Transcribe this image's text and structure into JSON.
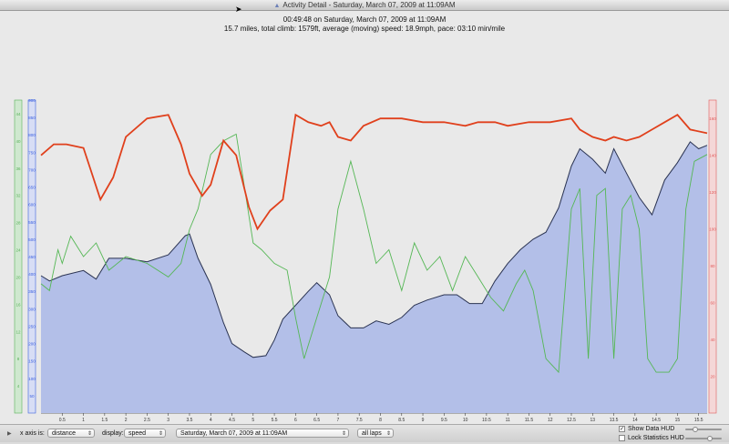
{
  "window": {
    "title": "Activity Detail - Saturday, March 07, 2009 at 11:09AM"
  },
  "header": {
    "line1": "00:49:48 on Saturday, March 07, 2009 at 11:09AM",
    "line2": "15.7 miles, total climb: 1579ft, average (moving) speed: 18.9mph, pace: 03:10 min/mile"
  },
  "controls": {
    "x_axis_label": "x axis is:",
    "x_axis_value": "distance",
    "display_label": "display:",
    "display_value": "speed",
    "activity_value": "Saturday, March 07, 2009 at 11:09AM",
    "laps_value": "all laps",
    "show_hud_label": "Show Data HUD",
    "show_hud_checked": true,
    "lock_stats_label": "Lock Statistics HUD",
    "lock_stats_checked": false
  },
  "colors": {
    "elevation_fill": "#b3bfe8",
    "elevation_line": "#2a3352",
    "heart_rate": "#e0401c",
    "speed": "#55b755",
    "axis_green": "#58b158",
    "axis_blue": "#3d62e0",
    "axis_red": "#e05a5a"
  },
  "chart_data": {
    "type": "area",
    "xlabel": "",
    "x_ticks": [
      "0.5",
      "1",
      "1.5",
      "2",
      "2.5",
      "3",
      "3.5",
      "4",
      "4.5",
      "5",
      "5.5",
      "6",
      "6.5",
      "7",
      "7.5",
      "8",
      "8.5",
      "9",
      "9.5",
      "10",
      "10.5",
      "11",
      "11.5",
      "12",
      "12.5",
      "13",
      "13.5",
      "14",
      "14.5",
      "15",
      "15.5"
    ],
    "xlim": [
      0,
      15.7
    ],
    "left_speed_axis": {
      "ticks": [
        "4",
        "8",
        "12",
        "16",
        "20",
        "24",
        "28",
        "32",
        "36",
        "40",
        "44"
      ],
      "range": [
        0,
        46
      ]
    },
    "left_elevation_axis": {
      "ticks": [
        "50",
        "100",
        "150",
        "200",
        "250",
        "300",
        "350",
        "400",
        "450",
        "500",
        "550",
        "600",
        "650",
        "700",
        "750",
        "800",
        "850",
        "900"
      ],
      "range": [
        0,
        900
      ]
    },
    "right_hr_axis": {
      "ticks": [
        "20",
        "40",
        "60",
        "80",
        "100",
        "120",
        "140",
        "160"
      ],
      "range": [
        0,
        170
      ]
    },
    "series": [
      {
        "values_name": "elevation",
        "axis": "left_elevation",
        "x": [
          0,
          0.2,
          0.5,
          1.0,
          1.3,
          1.6,
          2.0,
          2.5,
          3.0,
          3.4,
          3.5,
          3.7,
          4.0,
          4.3,
          4.5,
          4.8,
          5.0,
          5.3,
          5.5,
          5.7,
          6.0,
          6.3,
          6.5,
          6.8,
          7.0,
          7.3,
          7.6,
          7.9,
          8.2,
          8.5,
          8.8,
          9.1,
          9.5,
          9.8,
          10.1,
          10.4,
          10.7,
          11.0,
          11.3,
          11.6,
          11.9,
          12.2,
          12.5,
          12.7,
          13.0,
          13.3,
          13.5,
          13.8,
          14.1,
          14.4,
          14.7,
          15.0,
          15.3,
          15.5,
          15.7
        ],
        "y": [
          395,
          380,
          395,
          410,
          385,
          445,
          445,
          435,
          455,
          510,
          515,
          445,
          370,
          260,
          200,
          175,
          160,
          165,
          210,
          270,
          310,
          350,
          375,
          340,
          280,
          245,
          245,
          265,
          255,
          275,
          310,
          325,
          340,
          340,
          315,
          315,
          380,
          430,
          470,
          500,
          520,
          590,
          710,
          760,
          730,
          690,
          760,
          690,
          620,
          570,
          670,
          720,
          780,
          760,
          770
        ]
      },
      {
        "values_name": "heart rate",
        "axis": "right_hr",
        "x": [
          0,
          0.3,
          0.6,
          1.0,
          1.2,
          1.4,
          1.7,
          2.0,
          2.5,
          3.0,
          3.3,
          3.5,
          3.8,
          4.0,
          4.3,
          4.6,
          4.9,
          5.1,
          5.4,
          5.7,
          6.0,
          6.3,
          6.6,
          6.8,
          7.0,
          7.3,
          7.6,
          8.0,
          8.5,
          9.0,
          9.5,
          10.0,
          10.3,
          10.7,
          11.0,
          11.5,
          12.0,
          12.5,
          12.7,
          13.0,
          13.3,
          13.5,
          13.8,
          14.1,
          14.4,
          14.7,
          15.0,
          15.3,
          15.7
        ],
        "y": [
          140,
          146,
          146,
          144,
          130,
          116,
          128,
          150,
          160,
          162,
          146,
          130,
          118,
          124,
          148,
          140,
          112,
          100,
          110,
          116,
          162,
          158,
          156,
          158,
          150,
          148,
          156,
          160,
          160,
          158,
          158,
          156,
          158,
          158,
          156,
          158,
          158,
          160,
          154,
          150,
          148,
          150,
          148,
          150,
          154,
          158,
          162,
          154,
          152
        ]
      },
      {
        "values_name": "speed",
        "axis": "left_speed",
        "x": [
          0,
          0.2,
          0.4,
          0.5,
          0.7,
          1.0,
          1.3,
          1.6,
          2.0,
          2.5,
          3.0,
          3.3,
          3.5,
          3.7,
          4.0,
          4.3,
          4.6,
          4.8,
          5.0,
          5.2,
          5.5,
          5.8,
          6.0,
          6.2,
          6.5,
          6.8,
          7.0,
          7.3,
          7.6,
          7.9,
          8.2,
          8.5,
          8.8,
          9.1,
          9.4,
          9.7,
          10.0,
          10.3,
          10.6,
          10.9,
          11.2,
          11.4,
          11.6,
          11.9,
          12.2,
          12.5,
          12.7,
          12.9,
          13.1,
          13.3,
          13.5,
          13.7,
          13.9,
          14.1,
          14.3,
          14.5,
          14.8,
          15.0,
          15.2,
          15.4,
          15.7
        ],
        "y": [
          19,
          18,
          24,
          22,
          26,
          23,
          25,
          21,
          23,
          22,
          20,
          22,
          27,
          30,
          38,
          40,
          41,
          33,
          25,
          24,
          22,
          21,
          14,
          8,
          14,
          20,
          30,
          37,
          30,
          22,
          24,
          18,
          25,
          21,
          23,
          18,
          23,
          20,
          17,
          15,
          19,
          21,
          18,
          8,
          6,
          30,
          33,
          8,
          32,
          33,
          8,
          30,
          32,
          27,
          8,
          6,
          6,
          8,
          30,
          37,
          38
        ]
      }
    ],
    "grid": false,
    "legend": "none"
  }
}
